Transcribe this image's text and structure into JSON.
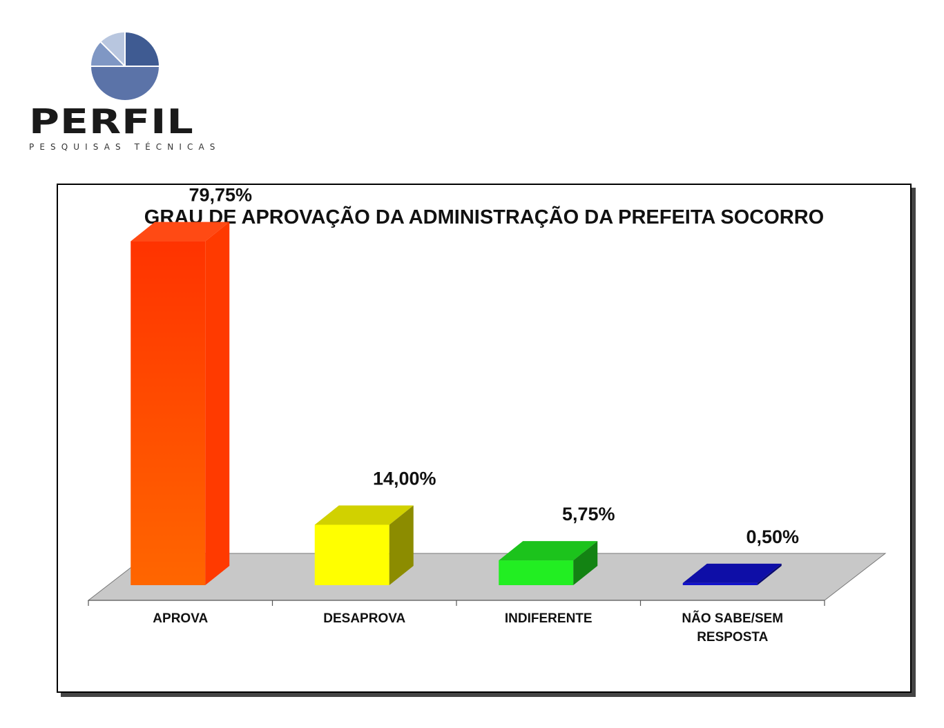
{
  "logo": {
    "name": "PERFIL",
    "tagline": "PESQUISAS TÉCNICAS",
    "colors": [
      "#3f5b92",
      "#7f97c4",
      "#b8c6df",
      "#5b73a8"
    ]
  },
  "chart_data": {
    "type": "bar",
    "title": "GRAU DE APROVAÇÃO DA ADMINISTRAÇÃO DA PREFEITA SOCORRO",
    "categories": [
      "APROVA",
      "DESAPROVA",
      "INDIFERENTE",
      "NÃO SABE/SEM RESPOSTA"
    ],
    "values": [
      79.75,
      14.0,
      5.75,
      0.5
    ],
    "value_labels": [
      "79,75%",
      "14,00%",
      "5,75%",
      "0,50%"
    ],
    "colors": [
      "#ff3300",
      "#ffff00",
      "#22ee22",
      "#1111cc"
    ],
    "ylim": [
      0,
      80
    ],
    "grid": false,
    "legend": "none",
    "style": "3d-bars"
  }
}
